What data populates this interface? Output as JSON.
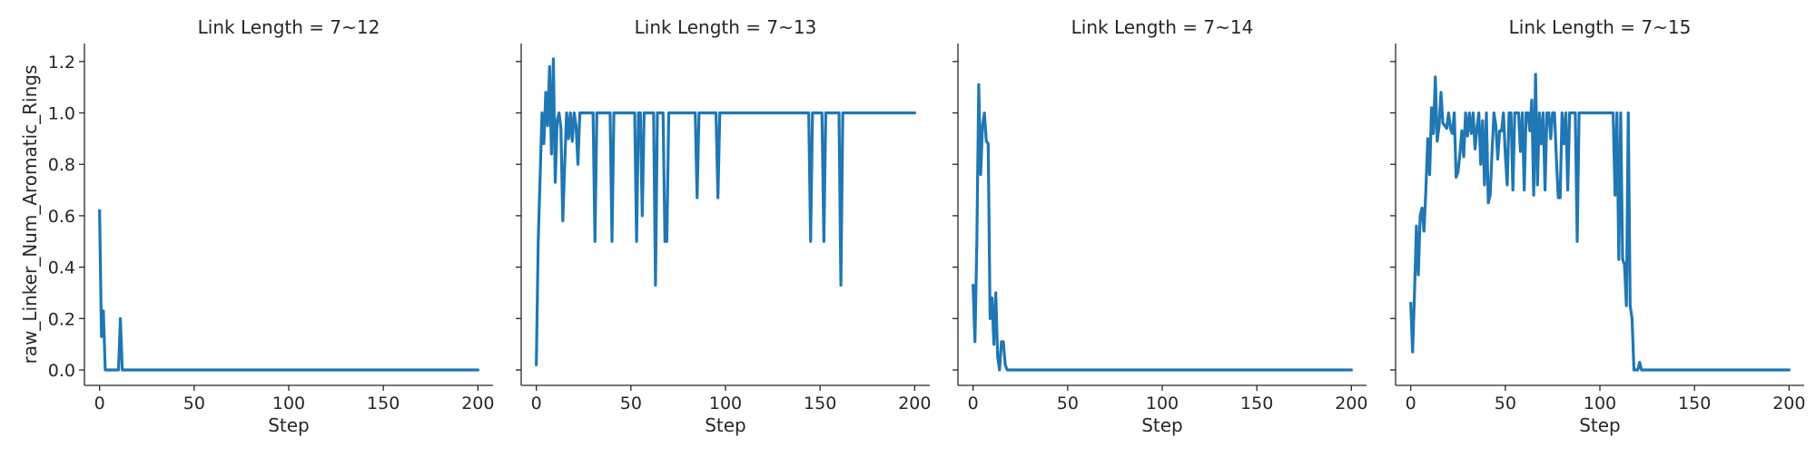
{
  "colors": {
    "series": "#1f77b4",
    "axis": "#262626",
    "background": "#ffffff"
  },
  "chart_data": {
    "type": "line",
    "layout": "facet-row",
    "shared_y": true,
    "ylabel": "raw_Linker_Num_Aromatic_Rings",
    "xlabel": "Step",
    "xlim": [
      -8,
      208
    ],
    "ylim": [
      -0.06,
      1.27
    ],
    "xticks": [
      0,
      50,
      100,
      150,
      200
    ],
    "xtick_labels": [
      "0",
      "50",
      "100",
      "150",
      "200"
    ],
    "yticks": [
      0.0,
      0.2,
      0.4,
      0.6,
      0.8,
      1.0,
      1.2
    ],
    "ytick_labels": [
      "0.0",
      "0.2",
      "0.4",
      "0.6",
      "0.8",
      "1.0",
      "1.2"
    ],
    "grid": false,
    "panels": [
      {
        "title": "Link Length = 7~12",
        "series": [
          {
            "x": [
              0,
              1,
              2,
              3,
              4,
              5,
              6,
              7,
              8,
              9,
              10,
              11,
              12,
              13,
              14,
              200
            ],
            "y": [
              0.62,
              0.13,
              0.23,
              0.0,
              0.0,
              0.0,
              0.0,
              0.0,
              0.0,
              0.0,
              0.0,
              0.2,
              0.0,
              0.0,
              0.0,
              0.0
            ]
          }
        ]
      },
      {
        "title": "Link Length = 7~13",
        "series": [
          {
            "x": [
              0,
              1,
              2,
              3,
              4,
              5,
              6,
              7,
              8,
              9,
              10,
              11,
              12,
              13,
              14,
              15,
              16,
              17,
              18,
              19,
              20,
              21,
              22,
              23,
              24,
              25,
              26,
              27,
              28,
              29,
              30,
              31,
              32,
              33,
              34,
              35,
              36,
              37,
              38,
              39,
              40,
              41,
              42,
              43,
              44,
              45,
              46,
              47,
              48,
              49,
              50,
              51,
              52,
              53,
              54,
              55,
              56,
              57,
              58,
              59,
              60,
              61,
              62,
              63,
              64,
              65,
              66,
              67,
              68,
              69,
              70,
              71,
              72,
              73,
              74,
              75,
              76,
              77,
              78,
              79,
              80,
              81,
              82,
              83,
              84,
              85,
              86,
              87,
              88,
              89,
              90,
              91,
              92,
              93,
              94,
              95,
              96,
              97,
              140,
              141,
              142,
              143,
              144,
              145,
              146,
              147,
              148,
              149,
              150,
              151,
              152,
              153,
              154,
              155,
              156,
              157,
              158,
              159,
              160,
              161,
              162,
              163,
              200
            ],
            "y": [
              0.02,
              0.5,
              0.75,
              1.0,
              0.88,
              1.08,
              0.95,
              1.18,
              0.84,
              1.21,
              0.73,
              0.97,
              1.0,
              0.94,
              0.58,
              0.8,
              1.0,
              0.9,
              1.0,
              0.89,
              1.0,
              0.95,
              0.8,
              1.0,
              1.0,
              1.0,
              1.0,
              1.0,
              1.0,
              1.0,
              1.0,
              0.5,
              1.0,
              1.0,
              1.0,
              1.0,
              1.0,
              1.0,
              1.0,
              1.0,
              0.5,
              1.0,
              1.0,
              1.0,
              1.0,
              1.0,
              1.0,
              1.0,
              1.0,
              1.0,
              1.0,
              1.0,
              1.0,
              0.5,
              1.0,
              1.0,
              0.6,
              1.0,
              1.0,
              1.0,
              1.0,
              1.0,
              1.0,
              0.33,
              1.0,
              1.0,
              1.0,
              1.0,
              0.5,
              0.5,
              1.0,
              1.0,
              1.0,
              1.0,
              1.0,
              1.0,
              1.0,
              1.0,
              1.0,
              1.0,
              1.0,
              1.0,
              1.0,
              1.0,
              1.0,
              0.67,
              1.0,
              1.0,
              1.0,
              1.0,
              1.0,
              1.0,
              1.0,
              1.0,
              1.0,
              1.0,
              0.67,
              1.0,
              1.0,
              1.0,
              1.0,
              1.0,
              1.0,
              0.5,
              1.0,
              1.0,
              1.0,
              1.0,
              1.0,
              1.0,
              0.5,
              1.0,
              1.0,
              1.0,
              1.0,
              1.0,
              1.0,
              1.0,
              1.0,
              0.33,
              1.0,
              1.0,
              1.0
            ]
          }
        ]
      },
      {
        "title": "Link Length = 7~14",
        "series": [
          {
            "x": [
              0,
              1,
              2,
              3,
              4,
              5,
              6,
              7,
              8,
              9,
              10,
              11,
              12,
              13,
              14,
              15,
              16,
              17,
              18,
              19,
              20,
              21,
              200
            ],
            "y": [
              0.33,
              0.11,
              0.5,
              1.11,
              0.76,
              0.95,
              1.0,
              0.89,
              0.88,
              0.2,
              0.28,
              0.1,
              0.3,
              0.05,
              0.0,
              0.11,
              0.11,
              0.02,
              0.0,
              0.0,
              0.0,
              0.0,
              0.0
            ]
          }
        ]
      },
      {
        "title": "Link Length = 7~15",
        "series": [
          {
            "x": [
              0,
              1,
              2,
              3,
              4,
              5,
              6,
              7,
              8,
              9,
              10,
              11,
              12,
              13,
              14,
              15,
              16,
              17,
              18,
              19,
              20,
              21,
              22,
              23,
              24,
              25,
              26,
              27,
              28,
              29,
              30,
              31,
              32,
              33,
              34,
              35,
              36,
              37,
              38,
              39,
              40,
              41,
              42,
              43,
              44,
              45,
              46,
              47,
              48,
              49,
              50,
              51,
              52,
              53,
              54,
              55,
              56,
              57,
              58,
              59,
              60,
              61,
              62,
              63,
              64,
              65,
              66,
              67,
              68,
              69,
              70,
              71,
              72,
              73,
              74,
              75,
              76,
              77,
              78,
              79,
              80,
              81,
              82,
              83,
              84,
              85,
              86,
              87,
              88,
              89,
              90,
              91,
              92,
              93,
              94,
              95,
              96,
              97,
              98,
              99,
              100,
              101,
              102,
              103,
              104,
              105,
              106,
              107,
              108,
              109,
              110,
              111,
              112,
              113,
              114,
              115,
              116,
              117,
              118,
              119,
              120,
              121,
              122,
              200
            ],
            "y": [
              0.26,
              0.07,
              0.3,
              0.56,
              0.37,
              0.6,
              0.63,
              0.54,
              0.7,
              0.9,
              0.76,
              1.02,
              0.92,
              1.14,
              0.89,
              0.95,
              1.08,
              0.96,
              0.95,
              0.94,
              1.0,
              0.94,
              0.92,
              1.0,
              0.75,
              0.77,
              0.84,
              0.93,
              0.83,
              1.0,
              0.91,
              1.0,
              0.92,
              1.0,
              0.86,
              0.94,
              1.0,
              0.8,
              0.97,
              0.72,
              1.0,
              0.65,
              0.68,
              0.85,
              1.0,
              0.95,
              0.82,
              0.93,
              0.93,
              1.0,
              0.84,
              0.72,
              1.0,
              1.0,
              0.7,
              1.0,
              1.0,
              1.0,
              0.85,
              1.0,
              0.7,
              1.0,
              1.0,
              0.93,
              1.05,
              0.68,
              1.15,
              0.72,
              1.0,
              0.88,
              1.0,
              0.7,
              1.0,
              1.0,
              0.9,
              1.0,
              1.0,
              0.82,
              0.67,
              0.67,
              1.0,
              0.88,
              1.0,
              0.7,
              1.0,
              1.0,
              1.0,
              1.0,
              0.5,
              1.0,
              1.0,
              1.0,
              1.0,
              1.0,
              1.0,
              1.0,
              1.0,
              1.0,
              1.0,
              1.0,
              1.0,
              1.0,
              1.0,
              1.0,
              1.0,
              1.0,
              1.0,
              1.0,
              0.68,
              1.0,
              0.43,
              1.0,
              0.43,
              0.41,
              0.25,
              1.0,
              0.25,
              0.2,
              0.0,
              0.0,
              0.0,
              0.03,
              0.0,
              0.0
            ]
          }
        ]
      }
    ]
  }
}
